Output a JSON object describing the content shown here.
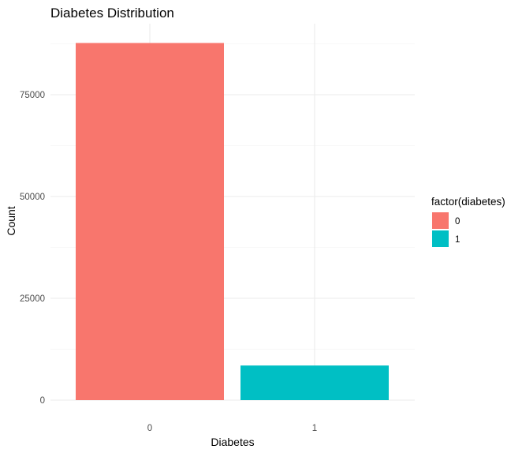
{
  "chart_data": {
    "type": "bar",
    "title": "Diabetes Distribution",
    "xlabel": "Diabetes",
    "ylabel": "Count",
    "categories": [
      "0",
      "1"
    ],
    "values": [
      87700,
      8500
    ],
    "ylim": [
      0,
      90000
    ],
    "yticks": [
      0,
      25000,
      50000,
      75000
    ],
    "ytick_labels": [
      "0",
      "25000",
      "50000",
      "75000"
    ],
    "grid": true,
    "legend": {
      "title": "factor(diabetes)",
      "placement": "right",
      "entries": [
        {
          "label": "0",
          "color": "#F8766D"
        },
        {
          "label": "1",
          "color": "#00BFC4"
        }
      ]
    },
    "colors": [
      "#F8766D",
      "#00BFC4"
    ]
  }
}
